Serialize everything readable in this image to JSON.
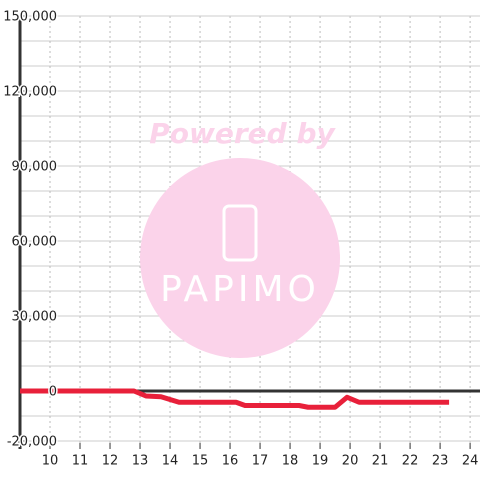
{
  "chart_data": {
    "type": "line",
    "x": [
      9,
      12.8,
      13.2,
      13.7,
      14.3,
      16.2,
      16.5,
      18.3,
      18.6,
      19.5,
      19.9,
      20.3,
      23.3
    ],
    "series": [
      {
        "color": "#e8203a",
        "values": [
          0,
          0,
          -2000,
          -2300,
          -4500,
          -4500,
          -5800,
          -5800,
          -6500,
          -6500,
          -2500,
          -4500,
          -4500
        ]
      }
    ],
    "xlim": [
      9,
      24.33
    ],
    "xticks": [
      10,
      11,
      12,
      13,
      14,
      15,
      16,
      17,
      18,
      19,
      20,
      21,
      22,
      23,
      24
    ],
    "ylim": [
      -20000,
      150000
    ],
    "yticks": [
      {
        "value": -20000,
        "label": "-20,000"
      },
      0,
      {
        "value": 30000,
        "label": "30,000"
      },
      {
        "value": 60000,
        "label": "60,000"
      },
      {
        "value": 90000,
        "label": "90,000"
      },
      {
        "value": 120000,
        "label": "120,000"
      },
      {
        "value": 150000,
        "label": "150,000"
      }
    ],
    "grid": true,
    "annotations": [
      "Powered by",
      "PAPIMO"
    ]
  }
}
